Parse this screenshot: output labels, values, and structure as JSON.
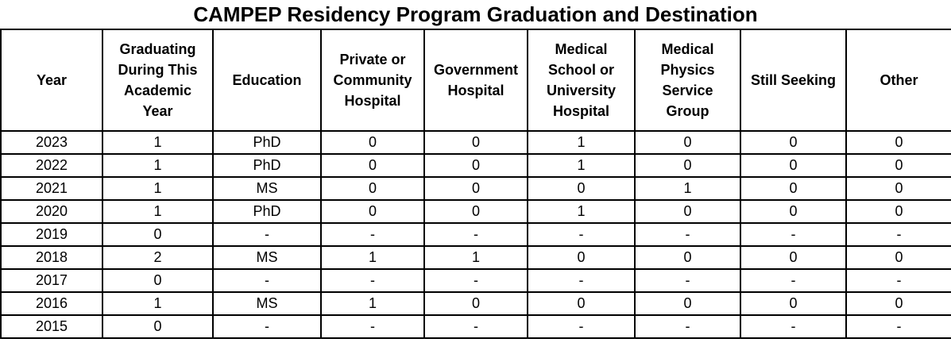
{
  "title": "CAMPEP Residency Program Graduation and Destination",
  "table": {
    "columns": [
      {
        "key": "year",
        "label": "Year"
      },
      {
        "key": "graduating-during-this-academic-year",
        "label": "Graduating During This Academic Year"
      },
      {
        "key": "education",
        "label": "Education"
      },
      {
        "key": "private-or-community-hospital",
        "label": "Private or Community Hospital"
      },
      {
        "key": "government-hospital",
        "label": "Government Hospital"
      },
      {
        "key": "medical-school-or-university-hospital",
        "label": "Medical School or University Hospital"
      },
      {
        "key": "medical-physics-service-group",
        "label": "Medical Physics Service Group"
      },
      {
        "key": "still-seeking",
        "label": "Still Seeking"
      },
      {
        "key": "other",
        "label": "Other"
      }
    ],
    "rows": [
      [
        "2023",
        "1",
        "PhD",
        "0",
        "0",
        "1",
        "0",
        "0",
        "0"
      ],
      [
        "2022",
        "1",
        "PhD",
        "0",
        "0",
        "1",
        "0",
        "0",
        "0"
      ],
      [
        "2021",
        "1",
        "MS",
        "0",
        "0",
        "0",
        "1",
        "0",
        "0"
      ],
      [
        "2020",
        "1",
        "PhD",
        "0",
        "0",
        "1",
        "0",
        "0",
        "0"
      ],
      [
        "2019",
        "0",
        "-",
        "-",
        "-",
        "-",
        "-",
        "-",
        "-"
      ],
      [
        "2018",
        "2",
        "MS",
        "1",
        "1",
        "0",
        "0",
        "0",
        "0"
      ],
      [
        "2017",
        "0",
        "-",
        "-",
        "-",
        "-",
        "-",
        "-",
        "-"
      ],
      [
        "2016",
        "1",
        "MS",
        "1",
        "0",
        "0",
        "0",
        "0",
        "0"
      ],
      [
        "2015",
        "0",
        "-",
        "-",
        "-",
        "-",
        "-",
        "-",
        "-"
      ]
    ]
  }
}
